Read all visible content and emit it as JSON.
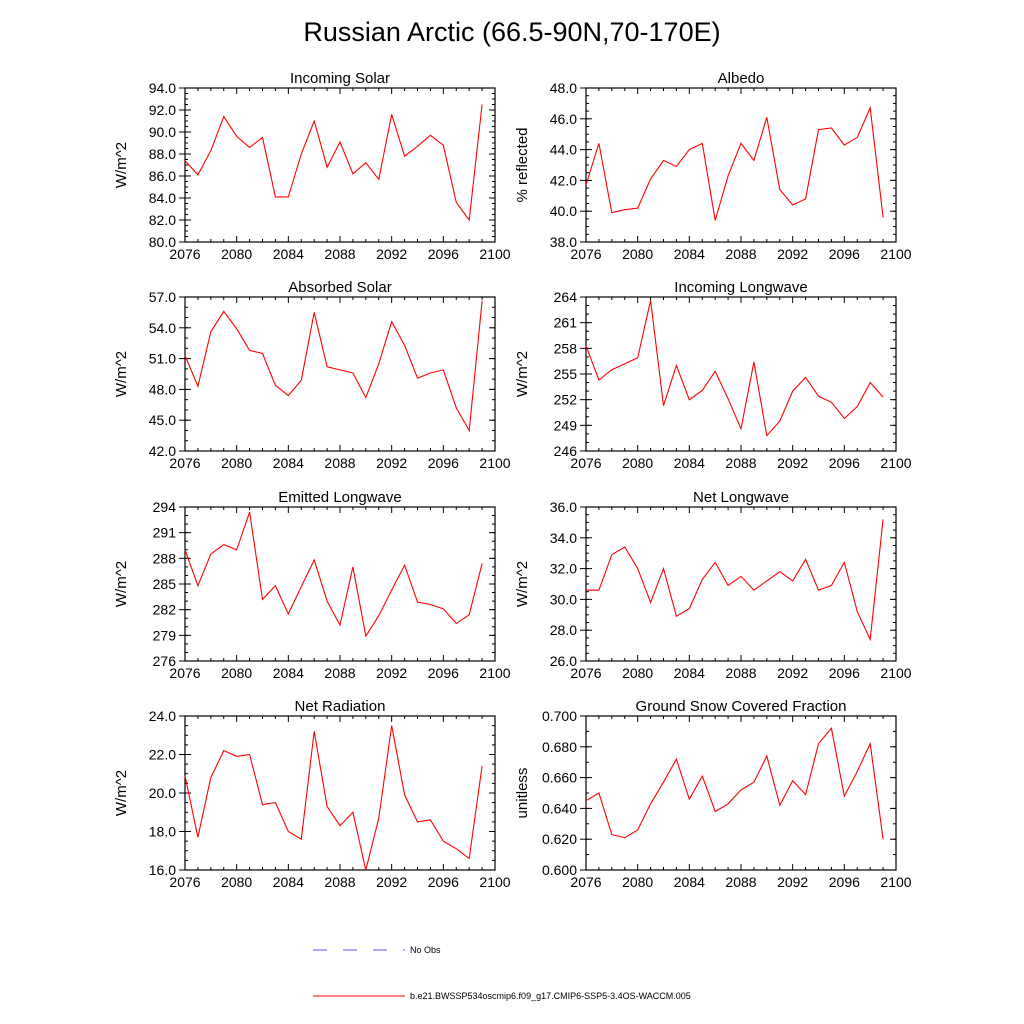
{
  "figure_title": "Russian Arctic (66.5-90N,70-170E)",
  "legend": [
    {
      "label": "No Obs",
      "color": "#5a5aff",
      "style": "dashed"
    },
    {
      "label": "b.e21.BWSSP534oscmip6.f09_g17.CMIP6-SSP5-3.4OS-WACCM.005",
      "color": "#ff0000",
      "style": "solid"
    }
  ],
  "chart_data": [
    {
      "type": "line",
      "title": "Incoming Solar",
      "xlabel": "",
      "ylabel": "W/m^2",
      "xlim": [
        2076,
        2100
      ],
      "ylim": [
        80,
        94
      ],
      "xticks": [
        "2076",
        "2080",
        "2084",
        "2088",
        "2092",
        "2096",
        "2100"
      ],
      "yticks": [
        "80.0",
        "82.0",
        "84.0",
        "86.0",
        "88.0",
        "90.0",
        "92.0",
        "94.0"
      ],
      "x": [
        2076,
        2077,
        2078,
        2079,
        2080,
        2081,
        2082,
        2083,
        2084,
        2085,
        2086,
        2087,
        2088,
        2089,
        2090,
        2091,
        2092,
        2093,
        2094,
        2095,
        2096,
        2097,
        2098,
        2099
      ],
      "series": [
        {
          "name": "b.e21.BWSSP534oscmip6.f09_g17.CMIP6-SSP5-3.4OS-WACCM.005",
          "color": "#ff0000",
          "values": [
            87.4,
            86.1,
            88.3,
            91.4,
            89.6,
            88.6,
            89.5,
            84.1,
            84.1,
            88.0,
            91.0,
            86.8,
            89.1,
            86.2,
            87.2,
            85.7,
            91.6,
            87.8,
            88.7,
            89.7,
            88.8,
            83.6,
            82.0,
            92.5
          ]
        }
      ]
    },
    {
      "type": "line",
      "title": "Albedo",
      "xlabel": "",
      "ylabel": "% reflected",
      "xlim": [
        2076,
        2100
      ],
      "ylim": [
        38,
        48
      ],
      "xticks": [
        "2076",
        "2080",
        "2084",
        "2088",
        "2092",
        "2096",
        "2100"
      ],
      "yticks": [
        "38.0",
        "40.0",
        "42.0",
        "44.0",
        "46.0",
        "48.0"
      ],
      "x": [
        2076,
        2077,
        2078,
        2079,
        2080,
        2081,
        2082,
        2083,
        2084,
        2085,
        2086,
        2087,
        2088,
        2089,
        2090,
        2091,
        2092,
        2093,
        2094,
        2095,
        2096,
        2097,
        2098,
        2099
      ],
      "series": [
        {
          "name": "b.e21.BWSSP534oscmip6.f09_g17.CMIP6-SSP5-3.4OS-WACCM.005",
          "color": "#ff0000",
          "values": [
            41.7,
            44.4,
            39.9,
            40.1,
            40.2,
            42.1,
            43.3,
            42.9,
            44.0,
            44.4,
            39.4,
            42.3,
            44.4,
            43.3,
            46.1,
            41.4,
            40.4,
            40.8,
            45.3,
            45.4,
            44.3,
            44.8,
            46.7,
            39.6
          ]
        }
      ]
    },
    {
      "type": "line",
      "title": "Absorbed Solar",
      "xlabel": "",
      "ylabel": "W/m^2",
      "xlim": [
        2076,
        2100
      ],
      "ylim": [
        42,
        57
      ],
      "xticks": [
        "2076",
        "2080",
        "2084",
        "2088",
        "2092",
        "2096",
        "2100"
      ],
      "yticks": [
        "42.0",
        "45.0",
        "48.0",
        "51.0",
        "54.0",
        "57.0"
      ],
      "x": [
        2076,
        2077,
        2078,
        2079,
        2080,
        2081,
        2082,
        2083,
        2084,
        2085,
        2086,
        2087,
        2088,
        2089,
        2090,
        2091,
        2092,
        2093,
        2094,
        2095,
        2096,
        2097,
        2098,
        2099
      ],
      "series": [
        {
          "name": "b.e21.BWSSP534oscmip6.f09_g17.CMIP6-SSP5-3.4OS-WACCM.005",
          "color": "#ff0000",
          "values": [
            51.3,
            48.3,
            53.6,
            55.6,
            53.9,
            51.8,
            51.5,
            48.4,
            47.4,
            48.9,
            55.5,
            50.2,
            49.9,
            49.6,
            47.2,
            50.5,
            54.6,
            52.3,
            49.1,
            49.6,
            49.9,
            46.2,
            44.0,
            56.6
          ]
        }
      ]
    },
    {
      "type": "line",
      "title": "Incoming Longwave",
      "xlabel": "",
      "ylabel": "W/m^2",
      "xlim": [
        2076,
        2100
      ],
      "ylim": [
        246,
        264
      ],
      "xticks": [
        "2076",
        "2080",
        "2084",
        "2088",
        "2092",
        "2096",
        "2100"
      ],
      "yticks": [
        "246",
        "249",
        "252",
        "255",
        "258",
        "261",
        "264"
      ],
      "x": [
        2076,
        2077,
        2078,
        2079,
        2080,
        2081,
        2082,
        2083,
        2084,
        2085,
        2086,
        2087,
        2088,
        2089,
        2090,
        2091,
        2092,
        2093,
        2094,
        2095,
        2096,
        2097,
        2098,
        2099
      ],
      "series": [
        {
          "name": "b.e21.BWSSP534oscmip6.f09_g17.CMIP6-SSP5-3.4OS-WACCM.005",
          "color": "#ff0000",
          "values": [
            258.3,
            254.3,
            255.5,
            256.2,
            256.9,
            263.6,
            251.3,
            256.0,
            252.0,
            253.1,
            255.3,
            252.1,
            248.6,
            256.4,
            247.8,
            249.5,
            253.0,
            254.6,
            252.4,
            251.7,
            249.8,
            251.2,
            254.0,
            252.3
          ]
        }
      ]
    },
    {
      "type": "line",
      "title": "Emitted Longwave",
      "xlabel": "",
      "ylabel": "W/m^2",
      "xlim": [
        2076,
        2100
      ],
      "ylim": [
        276,
        294
      ],
      "xticks": [
        "2076",
        "2080",
        "2084",
        "2088",
        "2092",
        "2096",
        "2100"
      ],
      "yticks": [
        "276",
        "279",
        "282",
        "285",
        "288",
        "291",
        "294"
      ],
      "x": [
        2076,
        2077,
        2078,
        2079,
        2080,
        2081,
        2082,
        2083,
        2084,
        2085,
        2086,
        2087,
        2088,
        2089,
        2090,
        2091,
        2092,
        2093,
        2094,
        2095,
        2096,
        2097,
        2098,
        2099
      ],
      "series": [
        {
          "name": "b.e21.BWSSP534oscmip6.f09_g17.CMIP6-SSP5-3.4OS-WACCM.005",
          "color": "#ff0000",
          "values": [
            289.0,
            284.8,
            288.5,
            289.6,
            289.0,
            293.4,
            283.2,
            284.8,
            281.5,
            284.7,
            287.8,
            283.0,
            280.2,
            287.0,
            278.9,
            281.3,
            284.3,
            287.2,
            282.9,
            282.6,
            282.1,
            280.4,
            281.4,
            287.4
          ]
        }
      ]
    },
    {
      "type": "line",
      "title": "Net Longwave",
      "xlabel": "",
      "ylabel": "W/m^2",
      "xlim": [
        2076,
        2100
      ],
      "ylim": [
        26,
        36
      ],
      "xticks": [
        "2076",
        "2080",
        "2084",
        "2088",
        "2092",
        "2096",
        "2100"
      ],
      "yticks": [
        "26.0",
        "28.0",
        "30.0",
        "32.0",
        "34.0",
        "36.0"
      ],
      "x": [
        2076,
        2077,
        2078,
        2079,
        2080,
        2081,
        2082,
        2083,
        2084,
        2085,
        2086,
        2087,
        2088,
        2089,
        2090,
        2091,
        2092,
        2093,
        2094,
        2095,
        2096,
        2097,
        2098,
        2099
      ],
      "series": [
        {
          "name": "b.e21.BWSSP534oscmip6.f09_g17.CMIP6-SSP5-3.4OS-WACCM.005",
          "color": "#ff0000",
          "values": [
            30.6,
            30.6,
            32.9,
            33.4,
            32.0,
            29.8,
            32.0,
            28.9,
            29.4,
            31.3,
            32.4,
            30.9,
            31.5,
            30.6,
            31.2,
            31.8,
            31.2,
            32.6,
            30.6,
            30.9,
            32.4,
            29.2,
            27.4,
            35.2
          ]
        }
      ]
    },
    {
      "type": "line",
      "title": "Net Radiation",
      "xlabel": "",
      "ylabel": "W/m^2",
      "xlim": [
        2076,
        2100
      ],
      "ylim": [
        16,
        24
      ],
      "xticks": [
        "2076",
        "2080",
        "2084",
        "2088",
        "2092",
        "2096",
        "2100"
      ],
      "yticks": [
        "16.0",
        "18.0",
        "20.0",
        "22.0",
        "24.0"
      ],
      "x": [
        2076,
        2077,
        2078,
        2079,
        2080,
        2081,
        2082,
        2083,
        2084,
        2085,
        2086,
        2087,
        2088,
        2089,
        2090,
        2091,
        2092,
        2093,
        2094,
        2095,
        2096,
        2097,
        2098,
        2099
      ],
      "series": [
        {
          "name": "b.e21.BWSSP534oscmip6.f09_g17.CMIP6-SSP5-3.4OS-WACCM.005",
          "color": "#ff0000",
          "values": [
            20.9,
            17.7,
            20.8,
            22.2,
            21.9,
            22.0,
            19.4,
            19.5,
            18.0,
            17.6,
            23.2,
            19.3,
            18.3,
            19.0,
            16.0,
            18.7,
            23.5,
            19.9,
            18.5,
            18.6,
            17.5,
            17.1,
            16.6,
            21.4
          ]
        }
      ]
    },
    {
      "type": "line",
      "title": "Ground Snow Covered Fraction",
      "xlabel": "",
      "ylabel": "unitless",
      "xlim": [
        2076,
        2100
      ],
      "ylim": [
        0.6,
        0.7
      ],
      "xticks": [
        "2076",
        "2080",
        "2084",
        "2088",
        "2092",
        "2096",
        "2100"
      ],
      "yticks": [
        "0.600",
        "0.620",
        "0.640",
        "0.660",
        "0.680",
        "0.700"
      ],
      "x": [
        2076,
        2077,
        2078,
        2079,
        2080,
        2081,
        2082,
        2083,
        2084,
        2085,
        2086,
        2087,
        2088,
        2089,
        2090,
        2091,
        2092,
        2093,
        2094,
        2095,
        2096,
        2097,
        2098,
        2099
      ],
      "series": [
        {
          "name": "b.e21.BWSSP534oscmip6.f09_g17.CMIP6-SSP5-3.4OS-WACCM.005",
          "color": "#ff0000",
          "values": [
            0.645,
            0.65,
            0.623,
            0.621,
            0.626,
            0.643,
            0.657,
            0.672,
            0.646,
            0.661,
            0.638,
            0.643,
            0.652,
            0.657,
            0.674,
            0.642,
            0.658,
            0.649,
            0.682,
            0.692,
            0.648,
            0.664,
            0.682,
            0.62
          ]
        }
      ]
    }
  ]
}
